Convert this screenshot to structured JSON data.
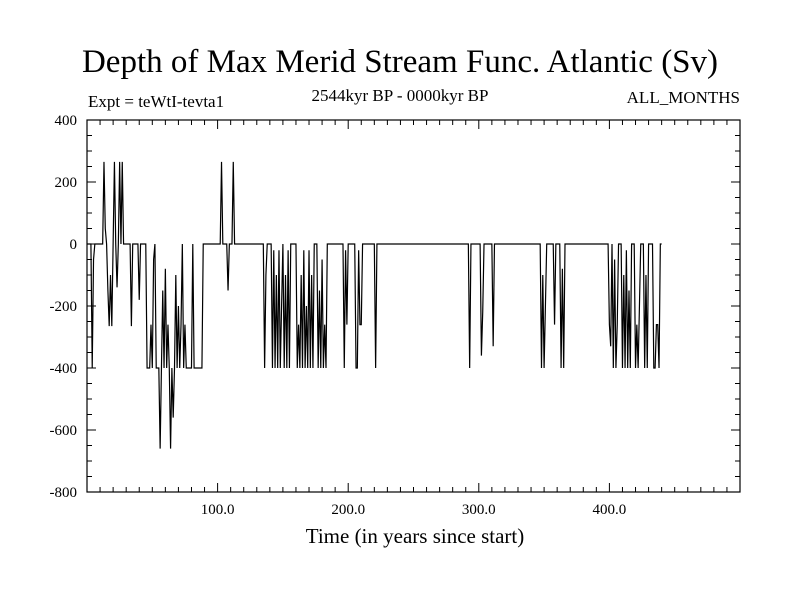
{
  "chart_data": {
    "type": "line",
    "title": "Depth of Max Merid Stream Func. Atlantic (Sv)",
    "subtitle": "2544kyr BP - 0000kyr BP",
    "left_label": "Expt = teWtI-tevta1",
    "right_label": "ALL_MONTHS",
    "xlabel": "Time (in years since start)",
    "ylabel": "",
    "xlim": [
      0,
      500
    ],
    "ylim": [
      -800,
      400
    ],
    "x_ticks": [
      100,
      200,
      300,
      400
    ],
    "x_tick_labels": [
      "100.0",
      "200.0",
      "300.0",
      "400.0"
    ],
    "y_ticks": [
      400,
      200,
      0,
      -200,
      -400,
      -600,
      -800
    ],
    "y_tick_labels": [
      "400",
      "200",
      "0",
      "-200",
      "-400",
      "-600",
      "-800"
    ],
    "grid": false,
    "series": [
      {
        "values": [
          [
            0,
            0
          ],
          [
            3,
            0
          ],
          [
            4,
            -400
          ],
          [
            5,
            -50
          ],
          [
            6,
            0
          ],
          [
            12,
            0
          ],
          [
            13,
            265
          ],
          [
            14,
            50
          ],
          [
            15,
            0
          ],
          [
            16,
            -150
          ],
          [
            17,
            -265
          ],
          [
            18,
            -100
          ],
          [
            19,
            -265
          ],
          [
            20,
            0
          ],
          [
            21,
            265
          ],
          [
            22,
            0
          ],
          [
            23,
            -140
          ],
          [
            24,
            0
          ],
          [
            25,
            265
          ],
          [
            26,
            0
          ],
          [
            27,
            265
          ],
          [
            28,
            0
          ],
          [
            33,
            0
          ],
          [
            34,
            -265
          ],
          [
            35,
            0
          ],
          [
            39,
            0
          ],
          [
            40,
            -180
          ],
          [
            41,
            0
          ],
          [
            45,
            0
          ],
          [
            46,
            -400
          ],
          [
            48,
            -400
          ],
          [
            49,
            -260
          ],
          [
            50,
            -400
          ],
          [
            51,
            -50
          ],
          [
            52,
            0
          ],
          [
            53,
            -400
          ],
          [
            55,
            -400
          ],
          [
            56,
            -660
          ],
          [
            57,
            -400
          ],
          [
            58,
            -150
          ],
          [
            59,
            -400
          ],
          [
            60,
            -80
          ],
          [
            61,
            -400
          ],
          [
            62,
            -260
          ],
          [
            63,
            -400
          ],
          [
            64,
            -660
          ],
          [
            65,
            -400
          ],
          [
            66,
            -560
          ],
          [
            67,
            -400
          ],
          [
            68,
            -100
          ],
          [
            69,
            -400
          ],
          [
            70,
            -200
          ],
          [
            71,
            -400
          ],
          [
            72,
            -260
          ],
          [
            73,
            0
          ],
          [
            74,
            -400
          ],
          [
            75,
            -260
          ],
          [
            76,
            -400
          ],
          [
            80,
            -400
          ],
          [
            81,
            0
          ],
          [
            82,
            -400
          ],
          [
            88,
            -400
          ],
          [
            89,
            0
          ],
          [
            102,
            0
          ],
          [
            103,
            265
          ],
          [
            104,
            0
          ],
          [
            107,
            0
          ],
          [
            108,
            -150
          ],
          [
            109,
            0
          ],
          [
            111,
            0
          ],
          [
            112,
            265
          ],
          [
            113,
            0
          ],
          [
            135,
            0
          ],
          [
            136,
            -400
          ],
          [
            137,
            -100
          ],
          [
            138,
            0
          ],
          [
            141,
            0
          ],
          [
            142,
            -400
          ],
          [
            143,
            -20
          ],
          [
            144,
            -400
          ],
          [
            145,
            -100
          ],
          [
            146,
            -400
          ],
          [
            147,
            -20
          ],
          [
            148,
            -400
          ],
          [
            149,
            -200
          ],
          [
            150,
            0
          ],
          [
            151,
            -400
          ],
          [
            152,
            -100
          ],
          [
            153,
            -400
          ],
          [
            154,
            -20
          ],
          [
            155,
            -400
          ],
          [
            156,
            0
          ],
          [
            160,
            0
          ],
          [
            161,
            -400
          ],
          [
            162,
            -260
          ],
          [
            163,
            -400
          ],
          [
            164,
            -100
          ],
          [
            165,
            -400
          ],
          [
            166,
            -20
          ],
          [
            167,
            -400
          ],
          [
            168,
            -200
          ],
          [
            169,
            -400
          ],
          [
            170,
            -20
          ],
          [
            171,
            -400
          ],
          [
            172,
            -100
          ],
          [
            173,
            -400
          ],
          [
            174,
            0
          ],
          [
            176,
            0
          ],
          [
            177,
            -400
          ],
          [
            178,
            -150
          ],
          [
            179,
            -400
          ],
          [
            180,
            -50
          ],
          [
            181,
            -400
          ],
          [
            182,
            -260
          ],
          [
            183,
            -400
          ],
          [
            184,
            0
          ],
          [
            196,
            0
          ],
          [
            197,
            -400
          ],
          [
            198,
            -20
          ],
          [
            199,
            -260
          ],
          [
            200,
            0
          ],
          [
            205,
            0
          ],
          [
            206,
            -400
          ],
          [
            207,
            -400
          ],
          [
            208,
            -20
          ],
          [
            209,
            -260
          ],
          [
            210,
            -260
          ],
          [
            211,
            0
          ],
          [
            220,
            0
          ],
          [
            221,
            -400
          ],
          [
            222,
            0
          ],
          [
            292,
            0
          ],
          [
            293,
            -400
          ],
          [
            294,
            0
          ],
          [
            301,
            0
          ],
          [
            302,
            -360
          ],
          [
            303,
            -220
          ],
          [
            304,
            0
          ],
          [
            310,
            0
          ],
          [
            311,
            -330
          ],
          [
            312,
            0
          ],
          [
            347,
            0
          ],
          [
            348,
            -400
          ],
          [
            349,
            -100
          ],
          [
            350,
            -400
          ],
          [
            351,
            -200
          ],
          [
            352,
            0
          ],
          [
            357,
            0
          ],
          [
            358,
            -260
          ],
          [
            359,
            0
          ],
          [
            362,
            0
          ],
          [
            363,
            -400
          ],
          [
            364,
            -80
          ],
          [
            365,
            -400
          ],
          [
            366,
            0
          ],
          [
            399,
            0
          ],
          [
            400,
            -260
          ],
          [
            401,
            -330
          ],
          [
            402,
            0
          ],
          [
            403,
            -400
          ],
          [
            404,
            -50
          ],
          [
            405,
            -400
          ],
          [
            406,
            -260
          ],
          [
            407,
            0
          ],
          [
            409,
            0
          ],
          [
            410,
            -400
          ],
          [
            411,
            -100
          ],
          [
            412,
            -400
          ],
          [
            413,
            -20
          ],
          [
            414,
            -400
          ],
          [
            415,
            -150
          ],
          [
            416,
            -400
          ],
          [
            417,
            0
          ],
          [
            419,
            0
          ],
          [
            420,
            -400
          ],
          [
            421,
            -260
          ],
          [
            422,
            -400
          ],
          [
            423,
            -200
          ],
          [
            424,
            0
          ],
          [
            426,
            0
          ],
          [
            427,
            -400
          ],
          [
            428,
            -100
          ],
          [
            429,
            -400
          ],
          [
            430,
            0
          ],
          [
            433,
            0
          ],
          [
            434,
            -400
          ],
          [
            435,
            -400
          ],
          [
            436,
            -260
          ],
          [
            437,
            -260
          ],
          [
            438,
            -400
          ],
          [
            439,
            0
          ],
          [
            440,
            0
          ]
        ]
      }
    ]
  }
}
